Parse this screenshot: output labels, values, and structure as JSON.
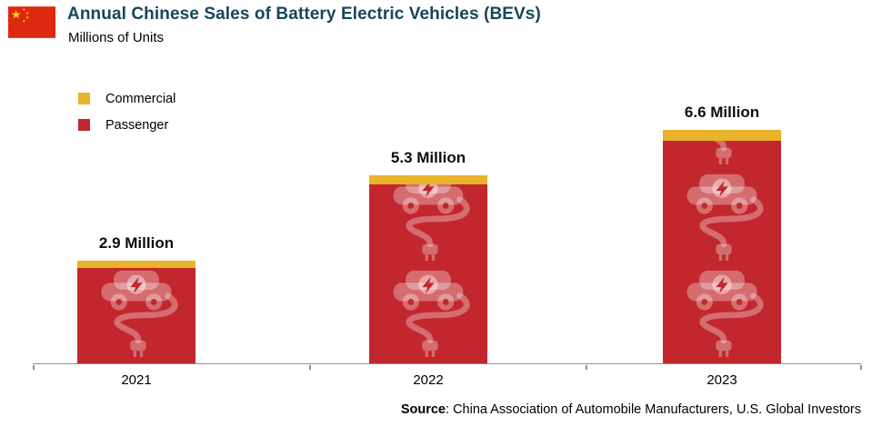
{
  "header": {
    "title": "Annual Chinese Sales of Battery Electric Vehicles (BEVs)",
    "subtitle": "Millions of Units"
  },
  "legend": {
    "items": [
      {
        "label": "Commercial",
        "color": "#e9b32a"
      },
      {
        "label": "Passenger",
        "color": "#c1272d"
      }
    ]
  },
  "chart_data": {
    "type": "bar",
    "stacked": true,
    "categories": [
      "2021",
      "2022",
      "2023"
    ],
    "series": [
      {
        "name": "Passenger",
        "color": "#c1272d",
        "values": [
          2.7,
          5.05,
          6.3
        ]
      },
      {
        "name": "Commercial",
        "color": "#e9b32a",
        "values": [
          0.2,
          0.25,
          0.3
        ]
      }
    ],
    "totals": [
      2.9,
      5.3,
      6.6
    ],
    "total_labels": [
      "2.9 Million",
      "5.3 Million",
      "6.6 Million"
    ],
    "title": "Annual Chinese Sales of Battery Electric Vehicles (BEVs)",
    "ylabel": "Millions of Units",
    "ylim": [
      0,
      7
    ],
    "grid": false,
    "legend_position": "top-left"
  },
  "source": {
    "label": "Source",
    "text": ": China Association of Automobile Manufacturers, U.S. Global Investors"
  },
  "icons": {
    "flag": "china-flag",
    "bar_decoration": "ev-car-cable-icon"
  },
  "colors": {
    "title": "#17465a",
    "passenger": "#c1272d",
    "commercial": "#e9b32a",
    "axis": "#8f8f8f",
    "flag_red": "#de2910",
    "flag_yellow": "#ffde00"
  }
}
